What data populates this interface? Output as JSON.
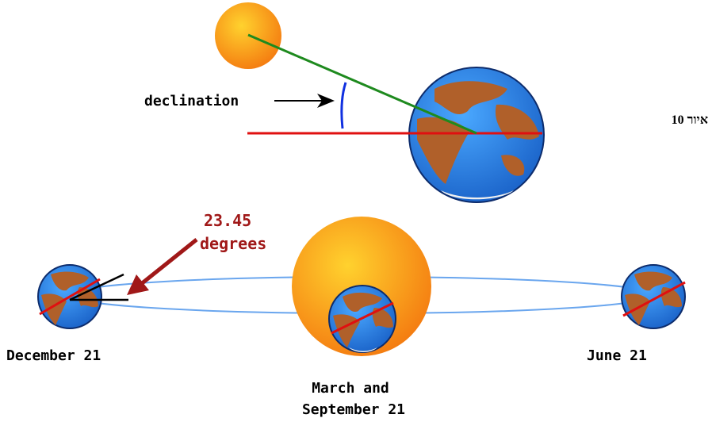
{
  "figure": {
    "caption": "איור 10",
    "declination_label": "declination",
    "tilt_label_value": "23.45",
    "tilt_label_unit": "degrees",
    "positions": {
      "december": "December 21",
      "march_line1": "March and",
      "march_line2": "September 21",
      "june": "June 21"
    }
  },
  "colors": {
    "sun_light": "#ffd22e",
    "sun_dark": "#f47a10",
    "ocean": "#2a8cf0",
    "land": "#b0602a",
    "sunlight_ray": "#1e8a1e",
    "equator_line": "#e01010",
    "declination_arc": "#1030e0",
    "orbit": "#6aa6ee",
    "tilt_label": "#a01818",
    "label_text": "#000000"
  }
}
